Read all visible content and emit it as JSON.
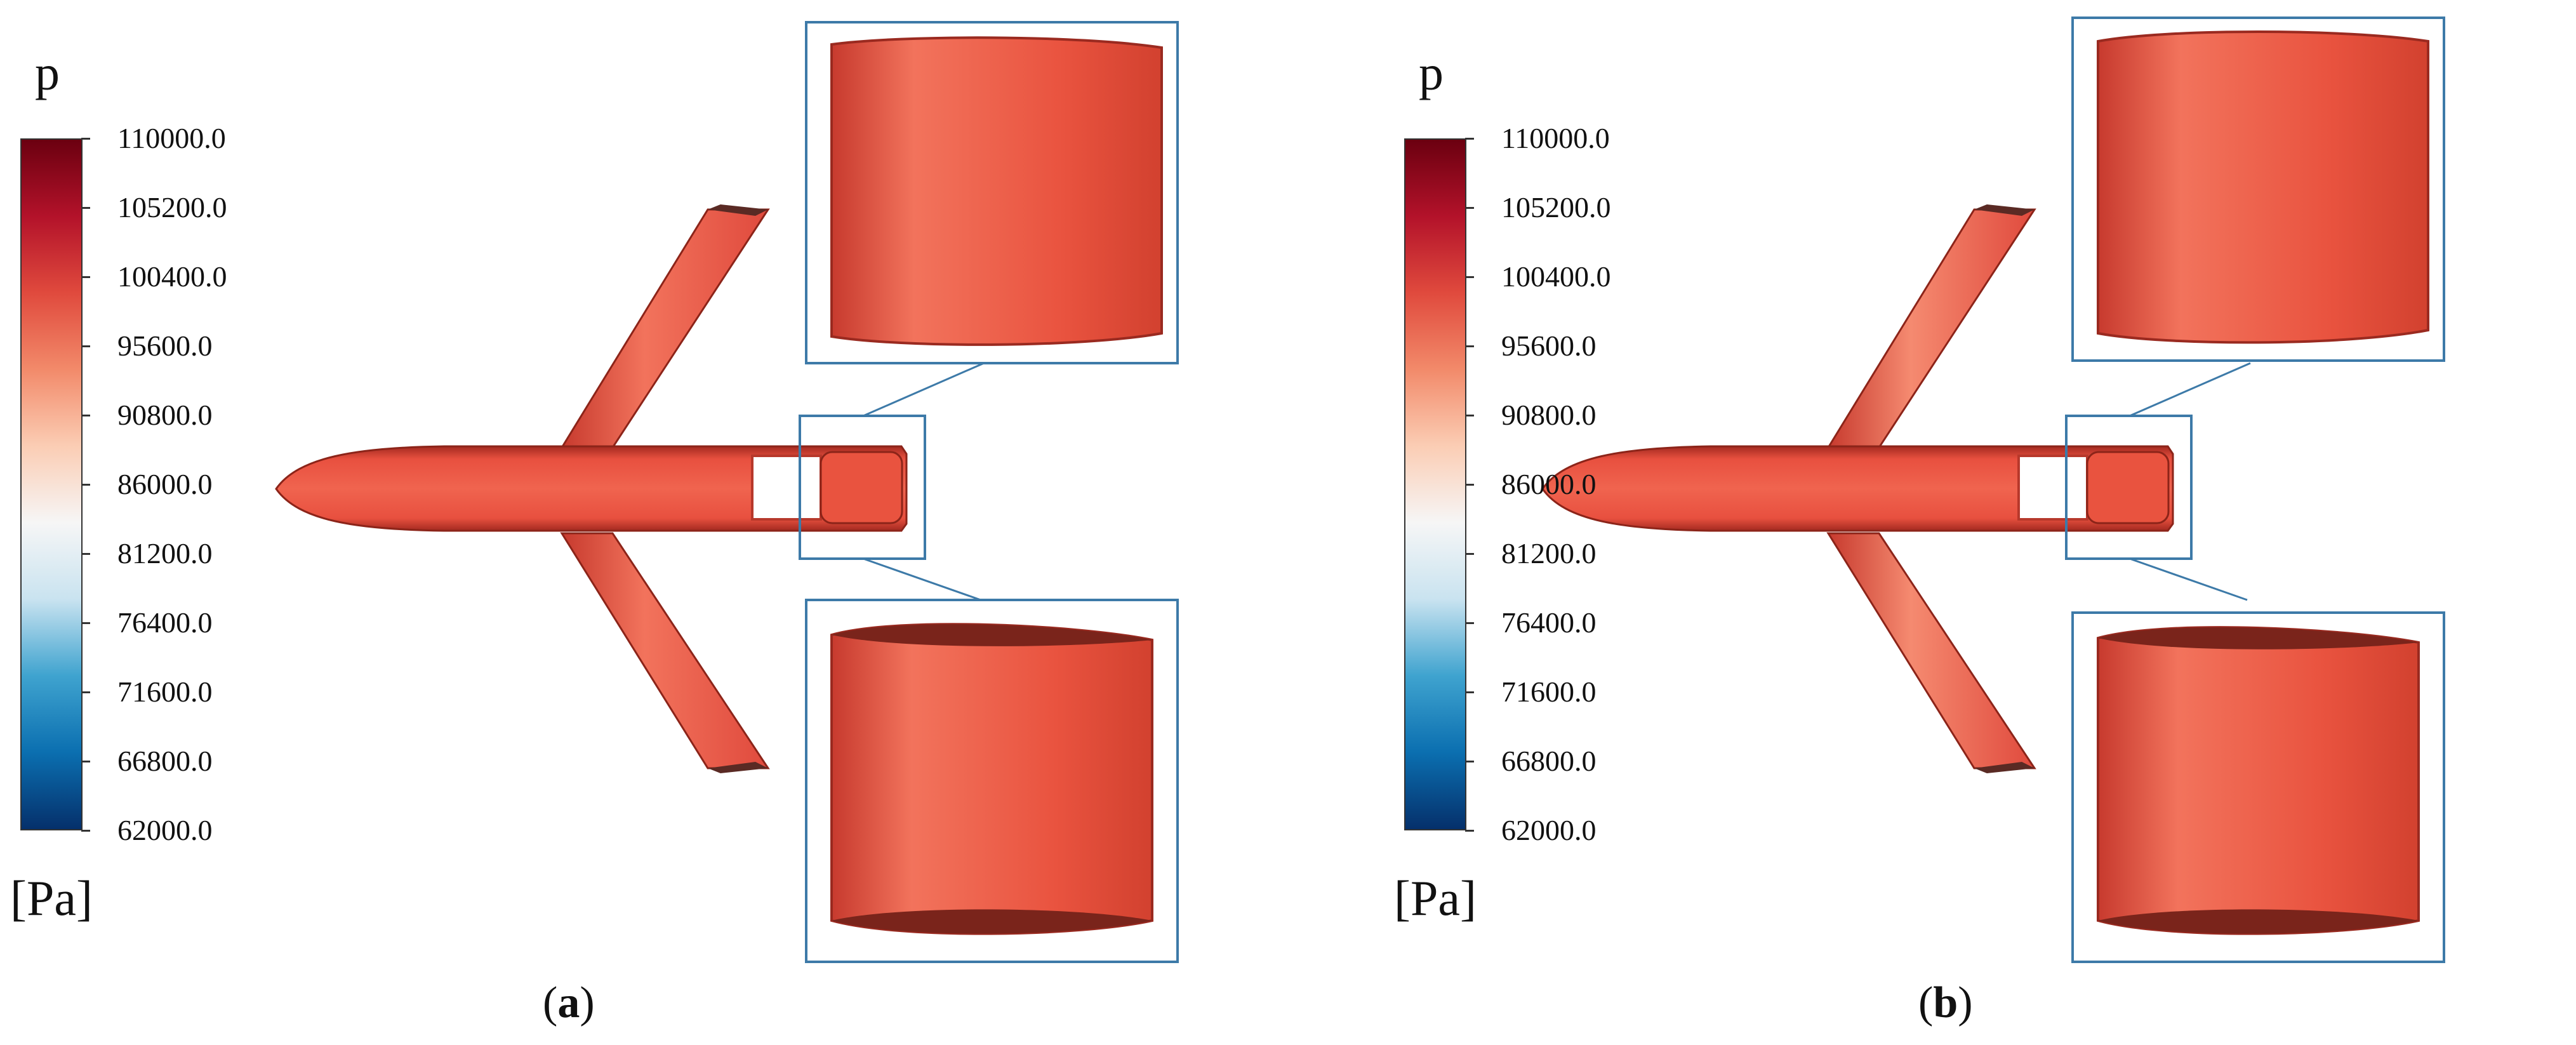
{
  "colors": {
    "colormap": [
      "#05306b",
      "#0b6fb0",
      "#3fa3cf",
      "#c9e3f0",
      "#f6f6f6",
      "#fbcdb4",
      "#f28a6a",
      "#e04a3d",
      "#b3122a",
      "#6b0010"
    ],
    "surface": "#e8503f",
    "surface_light": "#f2735c",
    "surface_dark": "#a32a20",
    "callout_box": "#3d7aa8"
  },
  "panels": [
    {
      "variable": "p",
      "unit": "[Pa]",
      "caption_label": "a",
      "colorbar_ticks": [
        "110000.0",
        "105200.0",
        "100400.0",
        "95600.0",
        "90800.0",
        "86000.0",
        "81200.0",
        "76400.0",
        "71600.0",
        "66800.0",
        "62000.0"
      ]
    },
    {
      "variable": "p",
      "unit": "[Pa]",
      "caption_label": "b",
      "colorbar_ticks": [
        "110000.0",
        "105200.0",
        "100400.0",
        "95600.0",
        "90800.0",
        "86000.0",
        "81200.0",
        "76400.0",
        "71600.0",
        "66800.0",
        "62000.0"
      ]
    }
  ]
}
